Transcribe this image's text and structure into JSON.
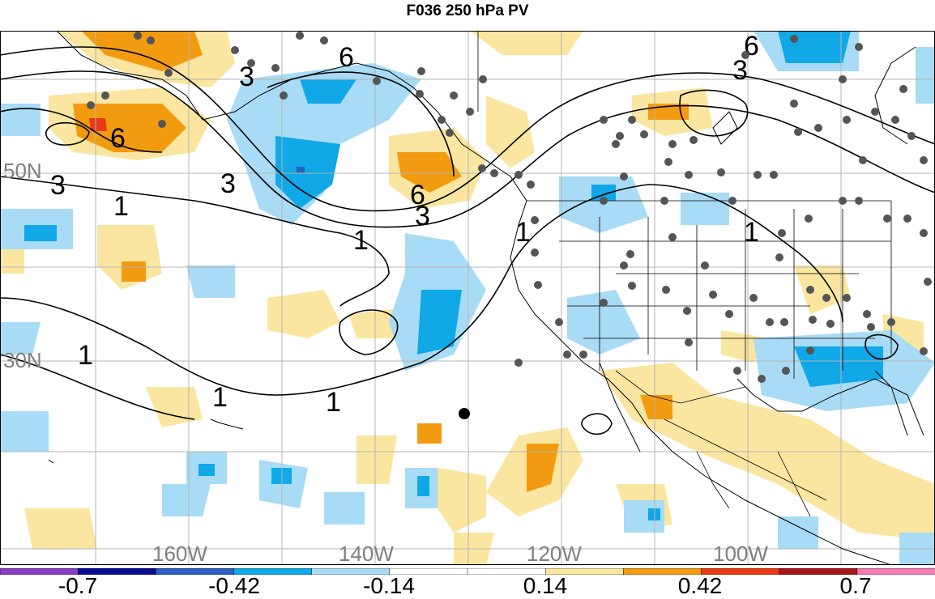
{
  "title": "F036 250 hPa PV",
  "lat_labels": [
    "50N",
    "30N"
  ],
  "lon_labels": [
    "160W",
    "140W",
    "120W",
    "100W"
  ],
  "contour_labels": [
    "6",
    "3",
    "3",
    "6",
    "6",
    "3",
    "3",
    "1",
    "1",
    "1",
    "1",
    "1",
    "1",
    "1",
    "3",
    "6"
  ],
  "colorbar": {
    "labels": [
      "-0.7",
      "-0.42",
      "-0.14",
      "0.14",
      "0.42",
      "0.7"
    ],
    "colors": [
      "#8a3fc4",
      "#0a0a8f",
      "#2c5fbf",
      "#10a8e6",
      "#a8dbf5",
      "#ffffff",
      "#ffffff",
      "#fae6a0",
      "#f29b11",
      "#e83a16",
      "#a5161b",
      "#f07cb0"
    ]
  },
  "colors": {
    "pos1": "#fae6a0",
    "pos2": "#f29b11",
    "pos3": "#e83a16",
    "neg1": "#a8dbf5",
    "neg2": "#10a8e6",
    "neg3": "#2c5fbf",
    "station": "#555555"
  }
}
